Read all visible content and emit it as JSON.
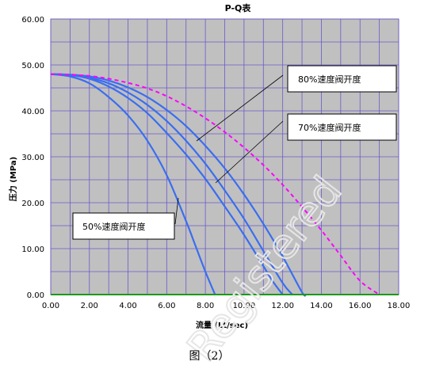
{
  "chart_data": {
    "type": "line",
    "title": "P-Q表",
    "xlabel": "流量 (Lt/sec)",
    "ylabel": "压力 (MPa)",
    "xlim": [
      0,
      18
    ],
    "ylim": [
      0,
      60
    ],
    "x_ticks": [
      "0.00",
      "2.00",
      "4.00",
      "6.00",
      "8.00",
      "10.00",
      "12.00",
      "14.00",
      "16.00",
      "18.00"
    ],
    "y_ticks": [
      "0.00",
      "10.00",
      "20.00",
      "30.00",
      "40.00",
      "50.00",
      "60.00"
    ],
    "grid": true,
    "series": [
      {
        "style": "solid",
        "color": "#3a6ef0",
        "x": [
          0,
          1,
          2,
          3,
          4,
          5,
          6,
          7,
          7.5,
          8,
          8.5
        ],
        "y": [
          48,
          47.5,
          46,
          43,
          39,
          33.5,
          26,
          16,
          10.5,
          5,
          0
        ]
      },
      {
        "style": "solid",
        "color": "#3a6ef0",
        "x": [
          0,
          1,
          2,
          3,
          4,
          5,
          6,
          7,
          8,
          9,
          10,
          11,
          11.5,
          12
        ],
        "y": [
          48,
          47.8,
          47,
          45.3,
          42.8,
          39.5,
          35.2,
          30.5,
          25.2,
          19.2,
          13,
          6.2,
          2.8,
          0
        ]
      },
      {
        "style": "solid",
        "color": "#3a6ef0",
        "x": [
          0,
          1,
          2,
          3,
          4,
          5,
          6,
          7,
          8,
          9,
          10,
          11,
          12,
          12.5
        ],
        "y": [
          48,
          47.8,
          47.2,
          46,
          44,
          41.3,
          37.8,
          33.5,
          28.5,
          22.7,
          16.5,
          9.5,
          2.5,
          0
        ]
      },
      {
        "style": "solid",
        "color": "#3a6ef0",
        "x": [
          0,
          1,
          2,
          3,
          4,
          5,
          6,
          7,
          8,
          9,
          10,
          11,
          12,
          13,
          13.2
        ],
        "y": [
          48,
          47.9,
          47.5,
          46.6,
          45.1,
          43,
          40.2,
          36.7,
          32.4,
          27.5,
          21.8,
          15.4,
          8.3,
          0.5,
          0
        ]
      },
      {
        "style": "dashed",
        "color": "#ff00ff",
        "x": [
          0,
          1,
          2,
          3,
          4,
          5,
          6,
          7,
          8,
          9,
          10,
          11,
          12,
          13,
          14,
          15,
          16,
          17
        ],
        "y": [
          48,
          47.9,
          47.6,
          47,
          46.1,
          44.9,
          43.2,
          41,
          38.4,
          35.4,
          32,
          28.2,
          23.9,
          19.1,
          14,
          8.5,
          3,
          0
        ]
      }
    ],
    "annotations": [
      "80%速度阀开度",
      "70%速度阀开度",
      "50%速度阀开度"
    ]
  },
  "caption": "图（2）",
  "watermark": "Registered"
}
